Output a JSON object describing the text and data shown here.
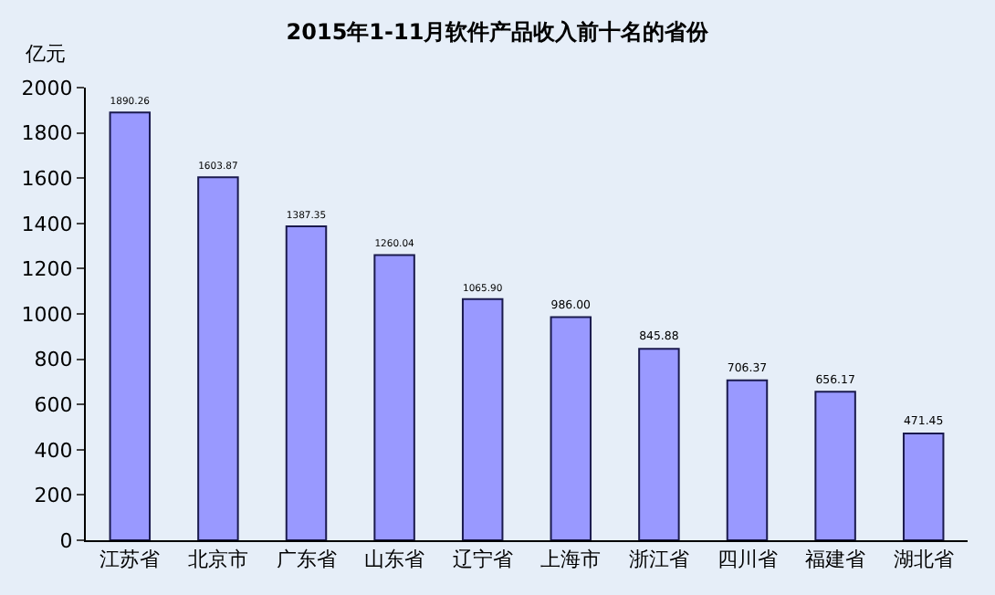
{
  "chart_data": {
    "type": "bar",
    "title": "2015年1-11月软件产品收入前十名的省份",
    "ylabel": "亿元",
    "categories": [
      "江苏省",
      "北京市",
      "广东省",
      "山东省",
      "辽宁省",
      "上海市",
      "浙江省",
      "四川省",
      "福建省",
      "湖北省"
    ],
    "values": [
      1890.26,
      1603.87,
      1387.35,
      1260.04,
      1065.9,
      986.0,
      845.88,
      706.37,
      656.17,
      471.45
    ],
    "value_labels": [
      "1890.26",
      "1603.87",
      "1387.35",
      "1260.04",
      "1065.90",
      "986.00",
      "845.88",
      "706.37",
      "656.17",
      "471.45"
    ],
    "color": "#9999ff",
    "ylim": [
      0,
      2000
    ],
    "yticks": [
      0,
      200,
      400,
      600,
      800,
      1000,
      1200,
      1400,
      1600,
      1800,
      2000
    ],
    "grid": false,
    "legend": false
  }
}
